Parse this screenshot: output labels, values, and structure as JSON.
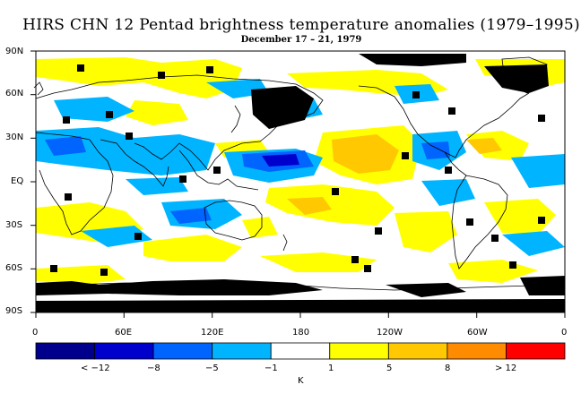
{
  "title": "HIRS CHN 12 Pentad brightness temperature anomalies (1979–1995)",
  "subtitle": "December 17 – 21, 1979",
  "lat_labels": [
    "90N",
    "60N",
    "30N",
    "EQ",
    "30S",
    "60S",
    "90S"
  ],
  "lon_labels": [
    "0",
    "60E",
    "120E",
    "180",
    "120W",
    "60W",
    "0"
  ],
  "colorbar": {
    "labels": [
      "< −12",
      "−8",
      "−5",
      "−1",
      "1",
      "5",
      "8",
      "> 12"
    ],
    "colors": [
      "#00008c",
      "#0000cd",
      "#0064ff",
      "#00b4ff",
      "#ffffff",
      "#ffff00",
      "#ffc800",
      "#ff8c00",
      "#ff0000"
    ],
    "unit": "K"
  },
  "palette": {
    "missing": "#000000",
    "continent_outline": "#000000"
  }
}
